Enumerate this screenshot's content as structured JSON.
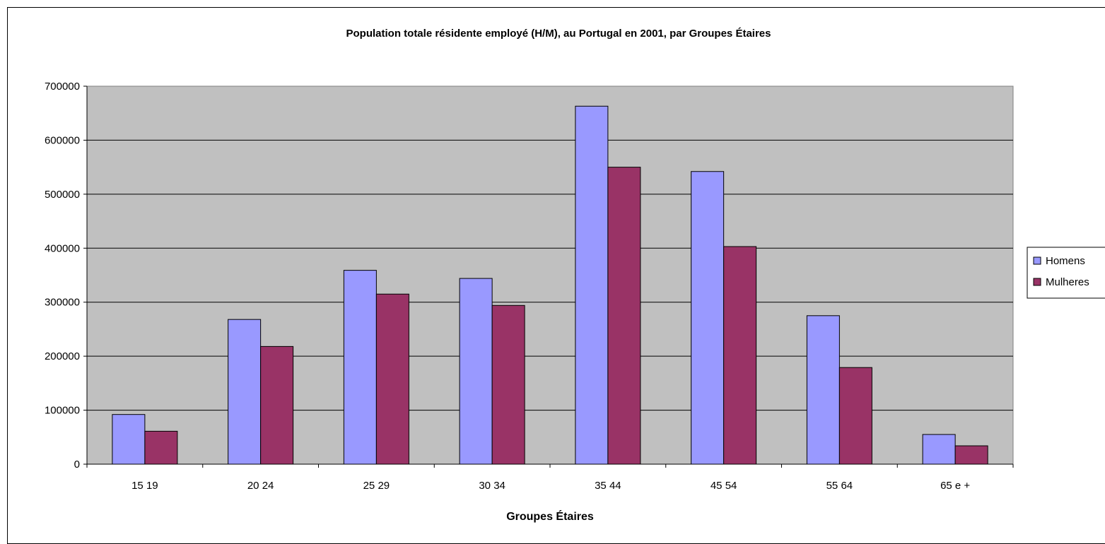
{
  "chart_data": {
    "type": "bar",
    "title": "Population totale résidente employé (H/M), au Portugal en 2001, par Groupes Étaires",
    "xlabel": "Groupes Étaires",
    "ylabel": "",
    "categories": [
      "15 19",
      "20 24",
      "25 29",
      "30 34",
      "35 44",
      "45 54",
      "55 64",
      "65 e +"
    ],
    "series": [
      {
        "name": "Homens",
        "color": "#9999ff",
        "values": [
          92000,
          268000,
          359000,
          344000,
          663000,
          542000,
          275000,
          55000
        ]
      },
      {
        "name": "Mulheres",
        "color": "#993366",
        "values": [
          61000,
          218000,
          315000,
          294000,
          550000,
          403000,
          179000,
          34000
        ]
      }
    ],
    "ylim": [
      0,
      700000
    ],
    "yticks": [
      0,
      100000,
      200000,
      300000,
      400000,
      500000,
      600000,
      700000
    ],
    "ytick_labels": [
      "0",
      "100000",
      "200000",
      "300000",
      "400000",
      "500000",
      "600000",
      "700000"
    ],
    "grid": true,
    "plot_background": "#c0c0c0",
    "legend_position": "right"
  }
}
